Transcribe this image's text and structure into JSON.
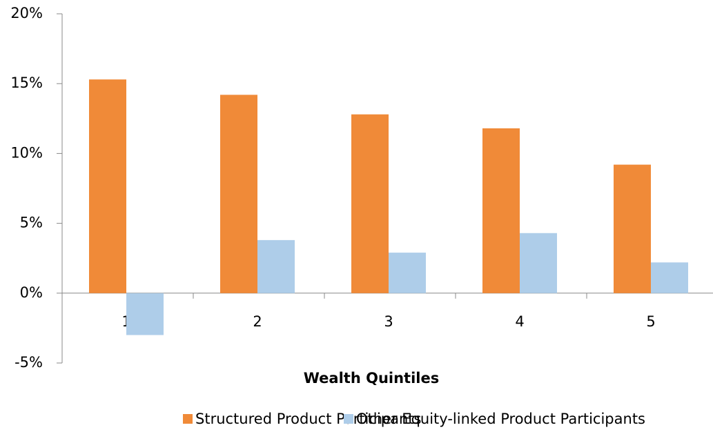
{
  "chart_data": {
    "type": "bar",
    "xlabel": "Wealth Quintiles",
    "categories": [
      "1",
      "2",
      "3",
      "4",
      "5"
    ],
    "series": [
      {
        "name": "Structured Product Participants",
        "color": "#f08a38",
        "values": [
          15.3,
          14.2,
          12.8,
          11.8,
          9.2
        ]
      },
      {
        "name": "Other Equity-linked Product Participants",
        "color": "#aecde9",
        "values": [
          -3.0,
          3.8,
          2.9,
          4.3,
          2.2
        ]
      }
    ],
    "ylim": [
      -5,
      20
    ],
    "yticks": [
      {
        "value": -5,
        "label": "-5%"
      },
      {
        "value": 0,
        "label": "0%"
      },
      {
        "value": 5,
        "label": "5%"
      },
      {
        "value": 10,
        "label": "10%"
      },
      {
        "value": 15,
        "label": "15%"
      },
      {
        "value": 20,
        "label": "20%"
      }
    ],
    "grid": false,
    "legend": "bottom"
  }
}
